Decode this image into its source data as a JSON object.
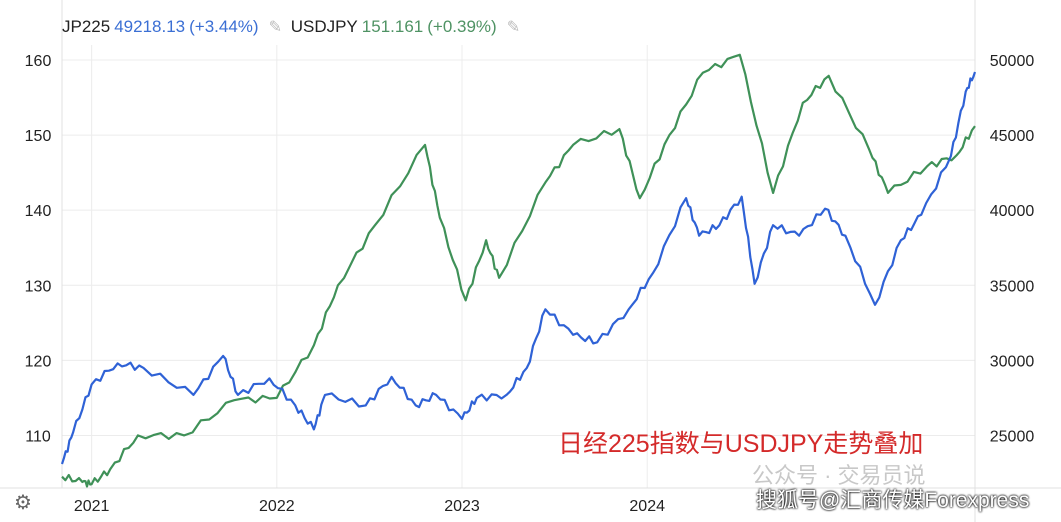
{
  "legend": {
    "jp_name": "JP225",
    "jp_value": "49218.13",
    "jp_change": "(+3.44%)",
    "usd_name": "USDJPY",
    "usd_value": "151.161",
    "usd_change": "(+0.39%)"
  },
  "annotation": "日经225指数与USDJPY走势叠加",
  "watermark": "公众号 · 交易员说",
  "watermark2": "搜狐号@汇商传媒Forexpress",
  "colors": {
    "jp225": "#2f62d6",
    "usdjpy": "#3f9158"
  },
  "chart_data": {
    "type": "line",
    "title": "",
    "x_ticks": [
      "2021",
      "2022",
      "2023",
      "2024"
    ],
    "xlim": [
      2020.84,
      2025.77
    ],
    "left_axis": {
      "label": "USDJPY",
      "ticks": [
        "160",
        "150",
        "140",
        "130",
        "120",
        "110"
      ],
      "ylim": [
        103,
        162
      ]
    },
    "right_axis": {
      "label": "JP225",
      "ticks": [
        "50000",
        "45000",
        "40000",
        "35000",
        "30000",
        "25000"
      ],
      "ylim": [
        21500,
        51000
      ]
    },
    "grid": true,
    "series": [
      {
        "name": "USDJPY",
        "axis": "left",
        "color": "#3f9158",
        "x": [
          2020.84,
          2020.95,
          2021.0,
          2021.1,
          2021.25,
          2021.5,
          2021.77,
          2022.0,
          2022.2,
          2022.33,
          2022.53,
          2022.8,
          2022.88,
          2023.02,
          2023.13,
          2023.2,
          2023.45,
          2023.6,
          2023.85,
          2023.96,
          2024.12,
          2024.3,
          2024.5,
          2024.68,
          2024.84,
          2024.98,
          2025.2,
          2025.3,
          2025.51,
          2025.67,
          2025.77
        ],
        "y": [
          104.5,
          103.8,
          103.5,
          105.5,
          110,
          110,
          114.7,
          115,
          122,
          130,
          138,
          148.7,
          139,
          128,
          136,
          131,
          143.7,
          148.7,
          150.8,
          141.6,
          150,
          158.3,
          160.7,
          142.3,
          154.3,
          157.9,
          148,
          142.3,
          145.8,
          147.3,
          151.2
        ]
      },
      {
        "name": "JP225",
        "axis": "right",
        "color": "#2f62d6",
        "x": [
          2020.84,
          2020.9,
          2021.0,
          2021.14,
          2021.28,
          2021.55,
          2021.71,
          2021.79,
          2021.96,
          2022.1,
          2022.2,
          2022.26,
          2022.48,
          2022.62,
          2022.75,
          2022.86,
          2023.0,
          2023.08,
          2023.24,
          2023.35,
          2023.45,
          2023.6,
          2023.73,
          2023.9,
          2024.03,
          2024.21,
          2024.28,
          2024.39,
          2024.51,
          2024.58,
          2024.68,
          2024.82,
          2024.96,
          2025.07,
          2025.23,
          2025.37,
          2025.48,
          2025.64,
          2025.72,
          2025.77
        ],
        "y": [
          23100,
          25200,
          28400,
          29800,
          29500,
          27700,
          30300,
          27700,
          28800,
          27000,
          25400,
          27700,
          27000,
          28900,
          27000,
          27700,
          26100,
          27500,
          27700,
          29500,
          33400,
          31700,
          31200,
          33400,
          35800,
          40800,
          38300,
          39000,
          40900,
          35100,
          39000,
          38300,
          40100,
          38300,
          33700,
          38000,
          39700,
          43600,
          47900,
          49200
        ]
      }
    ]
  }
}
